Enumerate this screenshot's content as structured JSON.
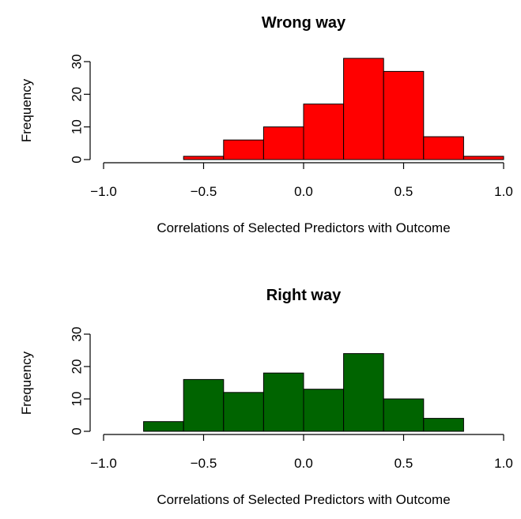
{
  "chart_data": [
    {
      "type": "bar",
      "title": "Wrong way",
      "xlabel": "Correlations of Selected Predictors with Outcome",
      "ylabel": "Frequency",
      "bin_edges": [
        -0.6,
        -0.4,
        -0.2,
        0.0,
        0.2,
        0.4,
        0.6,
        0.8,
        1.0
      ],
      "values": [
        1,
        6,
        10,
        17,
        31,
        27,
        7,
        1
      ],
      "xlim": [
        -1.0,
        1.0
      ],
      "ylim": [
        0,
        30
      ],
      "xticks": [
        -1.0,
        -0.5,
        0.0,
        0.5,
        1.0
      ],
      "xtick_labels": [
        "−1.0",
        "−0.5",
        "0.0",
        "0.5",
        "1.0"
      ],
      "yticks": [
        0,
        10,
        20,
        30
      ],
      "ytick_labels": [
        "0",
        "10",
        "20",
        "30"
      ],
      "bar_color": "#ff0000",
      "grid": false
    },
    {
      "type": "bar",
      "title": "Right way",
      "xlabel": "Correlations of Selected Predictors with Outcome",
      "ylabel": "Frequency",
      "bin_edges": [
        -0.8,
        -0.6,
        -0.4,
        -0.2,
        0.0,
        0.2,
        0.4,
        0.6,
        0.8
      ],
      "values": [
        3,
        16,
        12,
        18,
        13,
        24,
        10,
        4
      ],
      "xlim": [
        -1.0,
        1.0
      ],
      "ylim": [
        0,
        30
      ],
      "xticks": [
        -1.0,
        -0.5,
        0.0,
        0.5,
        1.0
      ],
      "xtick_labels": [
        "−1.0",
        "−0.5",
        "0.0",
        "0.5",
        "1.0"
      ],
      "yticks": [
        0,
        10,
        20,
        30
      ],
      "ytick_labels": [
        "0",
        "10",
        "20",
        "30"
      ],
      "bar_color": "#006400",
      "grid": false
    }
  ]
}
